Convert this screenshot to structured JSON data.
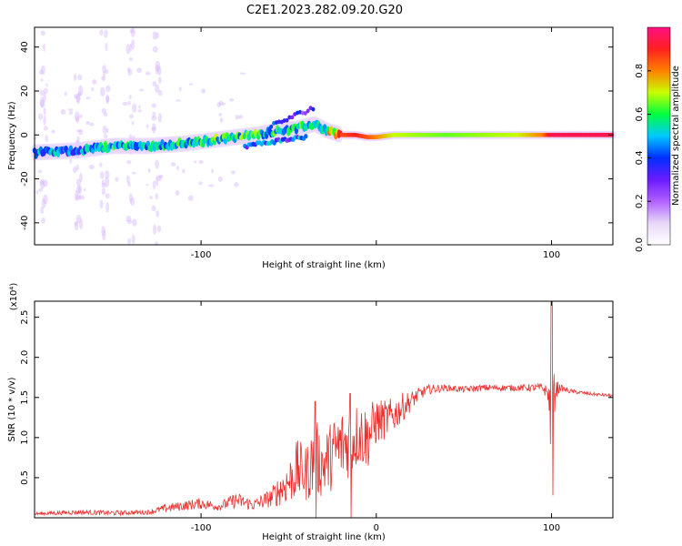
{
  "title": "C2E1.2023.282.09.20.G20",
  "colors": {
    "snr_line": "#e8302e",
    "axis": "#000000",
    "colormap": [
      "#ffffff",
      "#e8d8f8",
      "#b060ff",
      "#6a1aff",
      "#0030ff",
      "#00c8ff",
      "#00ff40",
      "#c8ff00",
      "#ff8000",
      "#ff2020",
      "#ff1080"
    ]
  },
  "chart_data": [
    {
      "type": "heatmap",
      "xlabel": "Height of straight line (km)",
      "ylabel": "Frequency (Hz)",
      "xlim": [
        -195,
        135
      ],
      "ylim": [
        -50,
        49
      ],
      "xticks": [
        -100,
        0,
        100
      ],
      "xtick_labels": [
        "-100",
        "",
        "100"
      ],
      "yticks": [
        -40,
        -20,
        0,
        20,
        40
      ],
      "ytick_labels": [
        "-40",
        "-20",
        "0",
        "20",
        "40"
      ],
      "colorbar": {
        "label": "Normalized spectral amplitude",
        "range": [
          0,
          1
        ],
        "ticks": [
          0.0,
          0.2,
          0.4,
          0.6,
          0.8
        ],
        "tick_labels": [
          "0.0",
          "0.2",
          "0.4",
          "0.6",
          "0.8"
        ]
      },
      "ridge": {
        "x": [
          -195,
          -170,
          -150,
          -130,
          -110,
          -90,
          -70,
          -55,
          -45,
          -35,
          -28,
          -20,
          -12,
          -5,
          0,
          10,
          40,
          80,
          95,
          100,
          135
        ],
        "freq": [
          -8,
          -7,
          -5,
          -5,
          -4,
          -2,
          0,
          2,
          3,
          5,
          2,
          0,
          0,
          -1,
          -1,
          0,
          0,
          0,
          0,
          0,
          0
        ],
        "amplitude": [
          0.5,
          0.45,
          0.55,
          0.5,
          0.55,
          0.6,
          0.6,
          0.55,
          0.55,
          0.6,
          0.65,
          0.85,
          0.9,
          0.85,
          0.8,
          0.7,
          0.65,
          0.7,
          0.8,
          0.95,
          0.95
        ]
      }
    },
    {
      "type": "line",
      "xlabel": "Height of straight line (km)",
      "ylabel": "SNR (10 * v/v)",
      "multiplier_label": "(x10⁴)",
      "xlim": [
        -195,
        135
      ],
      "ylim": [
        0,
        2.7
      ],
      "xticks": [
        -100,
        0,
        100
      ],
      "xtick_labels": [
        "-100",
        "0",
        "100"
      ],
      "yticks": [
        0.5,
        1.0,
        1.5,
        2.0,
        2.5
      ],
      "ytick_labels": [
        "0.5",
        "1.0",
        "1.5",
        "2.0",
        "2.5"
      ],
      "series": [
        {
          "x": [
            -195,
            -170,
            -150,
            -130,
            -120,
            -110,
            -100,
            -90,
            -80,
            -70,
            -60,
            -50,
            -45,
            -40,
            -35,
            -30,
            -25,
            -20,
            -15,
            -10,
            -5,
            0,
            5,
            10,
            15,
            20,
            25,
            30,
            40,
            50,
            60,
            70,
            80,
            90,
            95,
            98,
            100,
            102,
            105,
            110,
            120,
            135
          ],
          "y": [
            0.05,
            0.07,
            0.06,
            0.07,
            0.12,
            0.15,
            0.18,
            0.14,
            0.22,
            0.16,
            0.25,
            0.45,
            0.6,
            0.55,
            0.75,
            0.65,
            0.8,
            0.9,
            0.95,
            1.05,
            1.0,
            1.2,
            1.22,
            1.28,
            1.38,
            1.46,
            1.55,
            1.6,
            1.62,
            1.6,
            1.62,
            1.62,
            1.62,
            1.62,
            1.62,
            1.55,
            1.05,
            1.6,
            1.62,
            1.58,
            1.55,
            1.52
          ],
          "noise": [
            0.02,
            0.03,
            0.03,
            0.03,
            0.05,
            0.06,
            0.07,
            0.05,
            0.1,
            0.07,
            0.12,
            0.28,
            0.38,
            0.35,
            0.5,
            0.4,
            0.45,
            0.48,
            0.45,
            0.42,
            0.4,
            0.3,
            0.25,
            0.22,
            0.18,
            0.12,
            0.08,
            0.06,
            0.04,
            0.04,
            0.04,
            0.04,
            0.04,
            0.05,
            0.06,
            0.1,
            0.9,
            0.15,
            0.04,
            0.03,
            0.02,
            0.02
          ],
          "spikes": [
            {
              "x": 100,
              "y_max": 2.7,
              "y_min": 0.28
            },
            {
              "x": -35,
              "y_max": 1.45,
              "y_min": 0.0
            },
            {
              "x": -15,
              "y_max": 1.55,
              "y_min": 0.0
            }
          ]
        }
      ]
    }
  ]
}
